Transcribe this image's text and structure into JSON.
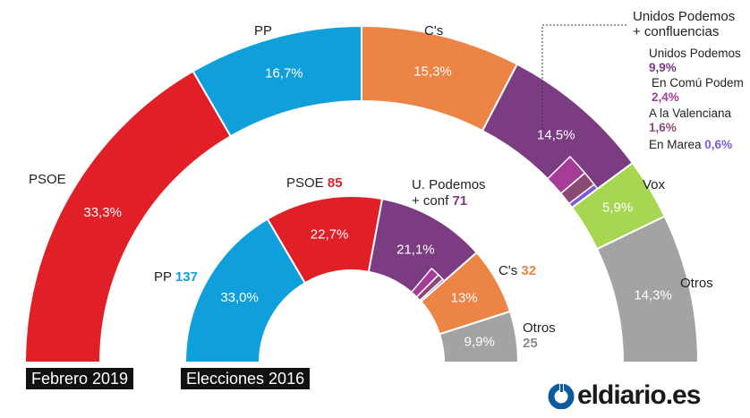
{
  "chart_data": [
    {
      "type": "pie",
      "subtype": "semicircle-donut",
      "caption": "Febrero 2019",
      "segments": [
        {
          "name": "PSOE",
          "value": 33.3,
          "value_label": "33,3%",
          "color": "#e01f26"
        },
        {
          "name": "PP",
          "value": 16.7,
          "value_label": "16,7%",
          "color": "#0fa0dc"
        },
        {
          "name": "C's",
          "value": 15.3,
          "value_label": "15,3%",
          "color": "#ec8445"
        },
        {
          "name": "Unidos Podemos + confluencias",
          "value": 14.5,
          "value_label": "14,5%",
          "color": "#7b3c82"
        },
        {
          "name": "Vox",
          "value": 5.9,
          "value_label": "5,9%",
          "color": "#a7d651"
        },
        {
          "name": "Otros",
          "value": 14.3,
          "value_label": "14,3%",
          "color": "#a3a3a3"
        }
      ],
      "breakdown": {
        "title_line1": "Unidos Podemos",
        "title_line2": "+ confluencias",
        "items": [
          {
            "name": "Unidos Podemos",
            "value": 9.9,
            "value_label": "9,9%",
            "color": "#7b3c82"
          },
          {
            "name": "En Comú Podem",
            "value": 2.4,
            "value_label": "2,4%",
            "color": "#a53c98"
          },
          {
            "name": "A la Valenciana",
            "value": 1.6,
            "value_label": "1,6%",
            "color": "#8b4a74"
          },
          {
            "name": "En Marea",
            "value": 0.6,
            "value_label": "0,6%",
            "color": "#7a5bd8"
          }
        ]
      }
    },
    {
      "type": "pie",
      "subtype": "semicircle-donut",
      "caption": "Elecciones 2016",
      "segments": [
        {
          "name": "PP",
          "seats": "137",
          "value": 33.0,
          "value_label": "33,0%",
          "color": "#0fa0dc"
        },
        {
          "name": "PSOE",
          "seats": "85",
          "value": 22.7,
          "value_label": "22,7%",
          "color": "#e01f26"
        },
        {
          "name": "U. Podemos + conf",
          "line1": "U. Podemos",
          "line2": "+ conf",
          "seats": "71",
          "value": 21.1,
          "value_label": "21,1%",
          "color": "#7b3c82"
        },
        {
          "name": "C's",
          "seats": "32",
          "value": 13,
          "value_label": "13%",
          "color": "#ec8445"
        },
        {
          "name": "Otros",
          "seats": "25",
          "value": 9.9,
          "value_label": "9,9%",
          "color": "#a3a3a3"
        }
      ]
    }
  ],
  "brand": {
    "name": "eldiario.es",
    "color": "#0a5aa0"
  }
}
